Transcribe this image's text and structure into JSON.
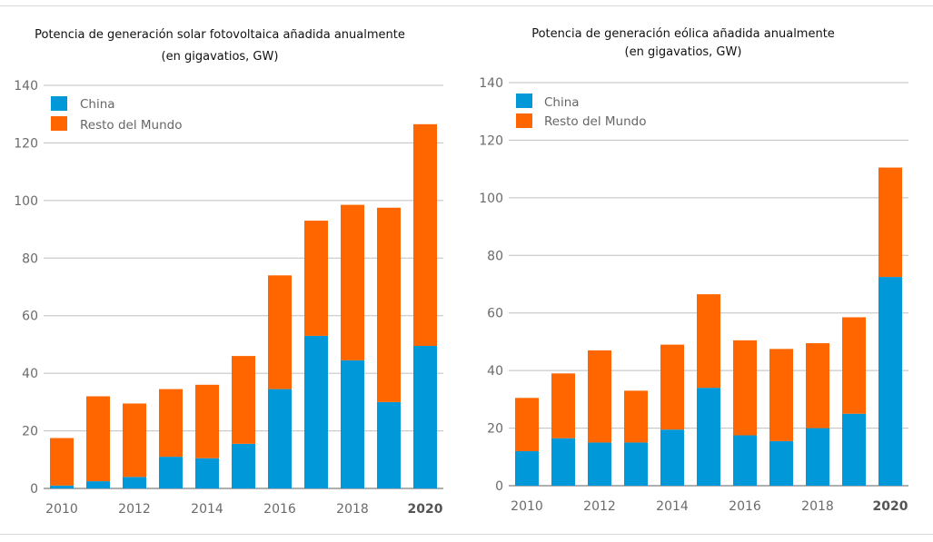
{
  "colors": {
    "china": "#0098d8",
    "rest": "#ff6600",
    "grid": "#bfbfbf",
    "axis": "#7f7f7f"
  },
  "chart_data": [
    {
      "type": "bar",
      "stacked": true,
      "title": "Potencia de generación solar fotovoltaica añadida anualmente",
      "subtitle": "(en gigavatios, GW)",
      "categories": [
        "2010",
        "2011",
        "2012",
        "2013",
        "2014",
        "2015",
        "2016",
        "2017",
        "2018",
        "2019",
        "2020"
      ],
      "x_tick_labels": [
        "2010",
        "2012",
        "2014",
        "2016",
        "2018",
        "2020"
      ],
      "y_ticks": [
        "0",
        "20",
        "40",
        "60",
        "80",
        "100",
        "120",
        "140"
      ],
      "ylim": [
        0,
        140
      ],
      "legend_position": "top-left",
      "series": [
        {
          "name": "China",
          "values": [
            1,
            2.5,
            4,
            11,
            10.5,
            15.5,
            34.5,
            53,
            44.5,
            30,
            49.5
          ]
        },
        {
          "name": "Resto del Mundo",
          "values": [
            16.5,
            29.5,
            25.5,
            23.5,
            25.5,
            30.5,
            39.5,
            40,
            54,
            67.5,
            77
          ]
        }
      ]
    },
    {
      "type": "bar",
      "stacked": true,
      "title": "Potencia de generación eólica añadida anualmente",
      "subtitle": "(en gigavatios, GW)",
      "categories": [
        "2010",
        "2011",
        "2012",
        "2013",
        "2014",
        "2015",
        "2016",
        "2017",
        "2018",
        "2019",
        "2020"
      ],
      "x_tick_labels": [
        "2010",
        "2012",
        "2014",
        "2016",
        "2018",
        "2020"
      ],
      "y_ticks": [
        "0",
        "20",
        "40",
        "60",
        "80",
        "100",
        "120",
        "140"
      ],
      "ylim": [
        0,
        140
      ],
      "legend_position": "top-left",
      "series": [
        {
          "name": "China",
          "values": [
            12,
            16.5,
            15,
            15,
            19.5,
            34,
            17.5,
            15.5,
            20,
            25,
            72.5
          ]
        },
        {
          "name": "Resto del Mundo",
          "values": [
            18.5,
            22.5,
            32,
            18,
            29.5,
            32.5,
            33,
            32,
            29.5,
            33.5,
            38
          ]
        }
      ]
    }
  ]
}
